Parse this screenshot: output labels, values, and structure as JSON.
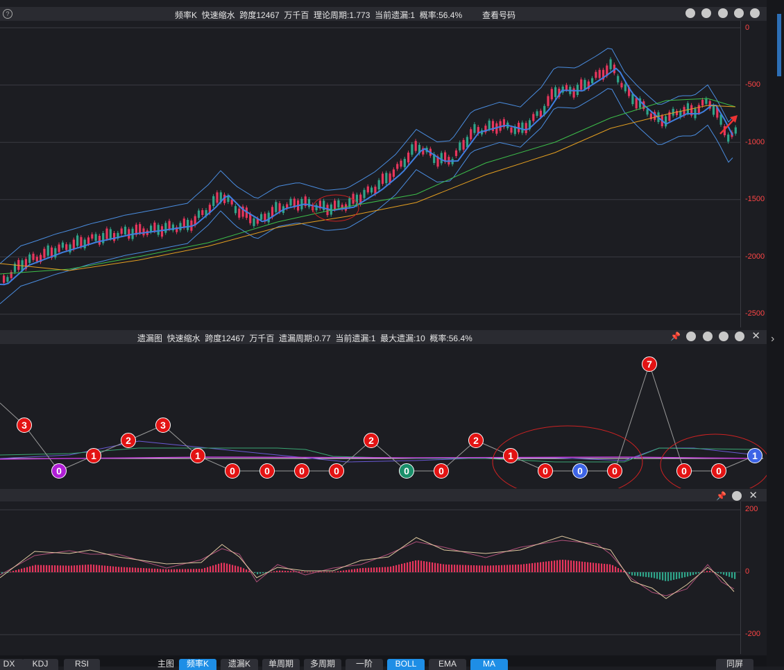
{
  "top_panel": {
    "title": "频率K  快速缩水  跨度12467  万千百  理论周期:1.773  当前遗漏:1  概率:56.4%",
    "link": "查看号码",
    "y_ticks": [
      "0",
      "-500",
      "-1000",
      "-1500",
      "-2000",
      "-2500"
    ]
  },
  "middle_panel": {
    "title": "遗漏图  快速缩水  跨度12467  万千百  遗漏周期:0.77  当前遗漏:1  最大遗漏:10  概率:56.4%",
    "bubbles": [
      {
        "v": "3",
        "c": "#e31313"
      },
      {
        "v": "0",
        "c": "#b01fd6"
      },
      {
        "v": "1",
        "c": "#e31313"
      },
      {
        "v": "2",
        "c": "#e31313"
      },
      {
        "v": "3",
        "c": "#e31313"
      },
      {
        "v": "1",
        "c": "#e31313"
      },
      {
        "v": "0",
        "c": "#e31313"
      },
      {
        "v": "0",
        "c": "#e31313"
      },
      {
        "v": "0",
        "c": "#e31313"
      },
      {
        "v": "0",
        "c": "#e31313"
      },
      {
        "v": "2",
        "c": "#e31313"
      },
      {
        "v": "0",
        "c": "#1a8f6a"
      },
      {
        "v": "0",
        "c": "#e31313"
      },
      {
        "v": "2",
        "c": "#e31313"
      },
      {
        "v": "1",
        "c": "#e31313"
      },
      {
        "v": "0",
        "c": "#e31313"
      },
      {
        "v": "0",
        "c": "#3d64e6"
      },
      {
        "v": "0",
        "c": "#e31313"
      },
      {
        "v": "7",
        "c": "#e31313"
      },
      {
        "v": "0",
        "c": "#e31313"
      },
      {
        "v": "0",
        "c": "#e31313"
      },
      {
        "v": "1",
        "c": "#3d64e6"
      }
    ]
  },
  "bottom_panel": {
    "y_ticks": [
      "200",
      "0",
      "-200"
    ]
  },
  "tabs_left": [
    "DX",
    "KDJ",
    "RSI"
  ],
  "tabs_main_label": "主图",
  "tabs": [
    {
      "label": "频率K",
      "active": true
    },
    {
      "label": "遗漏K",
      "active": false
    },
    {
      "label": "单周期",
      "active": false
    },
    {
      "label": "多周期",
      "active": false
    },
    {
      "label": "一阶",
      "active": false
    },
    {
      "label": "BOLL",
      "active": true
    },
    {
      "label": "EMA",
      "active": false
    },
    {
      "label": "MA",
      "active": true
    }
  ],
  "tab_right": "同屏",
  "colors": {
    "up": "#e8365d",
    "down": "#2fa58a",
    "boll": "#4a8de0",
    "ma_mid": "#3f7fe0",
    "ma_green": "#3dbf4a",
    "ma_orange": "#e6a020",
    "axis": "#ff4545"
  }
}
